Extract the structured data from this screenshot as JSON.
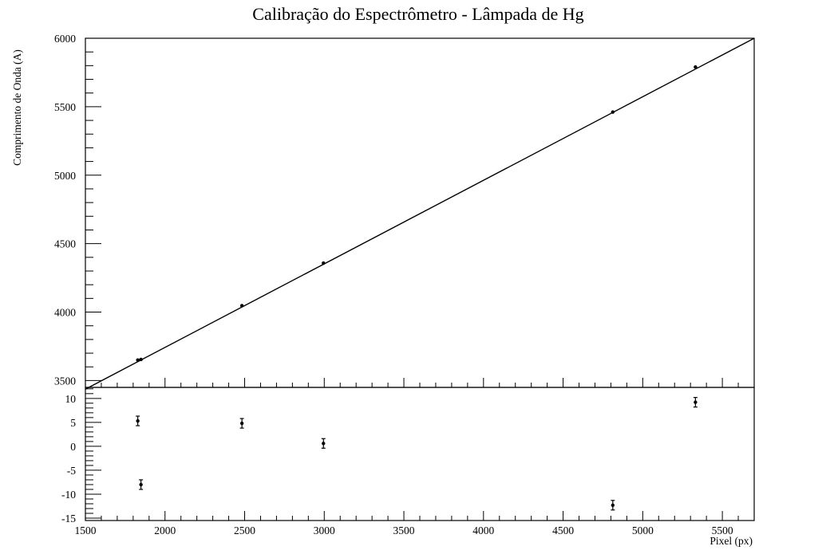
{
  "chart_data": [
    {
      "type": "scatter",
      "title": "Calibração do Espectrômetro - Lâmpada de Hg",
      "xlabel": "",
      "ylabel": "Comprimento de Onda (A)",
      "xlim": [
        1500,
        5700
      ],
      "ylim": [
        3450,
        6000
      ],
      "xticks": [
        1500,
        2000,
        2500,
        3000,
        3500,
        4000,
        4500,
        5000,
        5500
      ],
      "yticks": [
        3500,
        4000,
        4500,
        5000,
        5500,
        6000
      ],
      "grid": false,
      "series": [
        {
          "x": [
            1829,
            1849,
            2483,
            2995,
            4812,
            5331
          ],
          "y": [
            3650,
            3654,
            4047,
            4358,
            5461,
            5790
          ]
        }
      ],
      "fit_line": {
        "x": [
          1500,
          5700
        ],
        "y": [
          3437,
          6000
        ]
      }
    },
    {
      "type": "scatter",
      "title": "",
      "xlabel": "Pixel (px)",
      "ylabel": "",
      "xlim": [
        1500,
        5700
      ],
      "ylim": [
        -15.5,
        12.3
      ],
      "xticks": [
        1500,
        2000,
        2500,
        3000,
        3500,
        4000,
        4500,
        5000,
        5500
      ],
      "yticks": [
        -15,
        -10,
        -5,
        0,
        5,
        10
      ],
      "grid": false,
      "series": [
        {
          "x": [
            1829,
            1849,
            2483,
            2995,
            4812,
            5331
          ],
          "y": [
            5.3,
            -8.0,
            4.8,
            0.6,
            -12.3,
            9.2
          ],
          "yerr": [
            1.0,
            1.0,
            1.0,
            1.0,
            1.0,
            1.0
          ]
        }
      ]
    }
  ]
}
